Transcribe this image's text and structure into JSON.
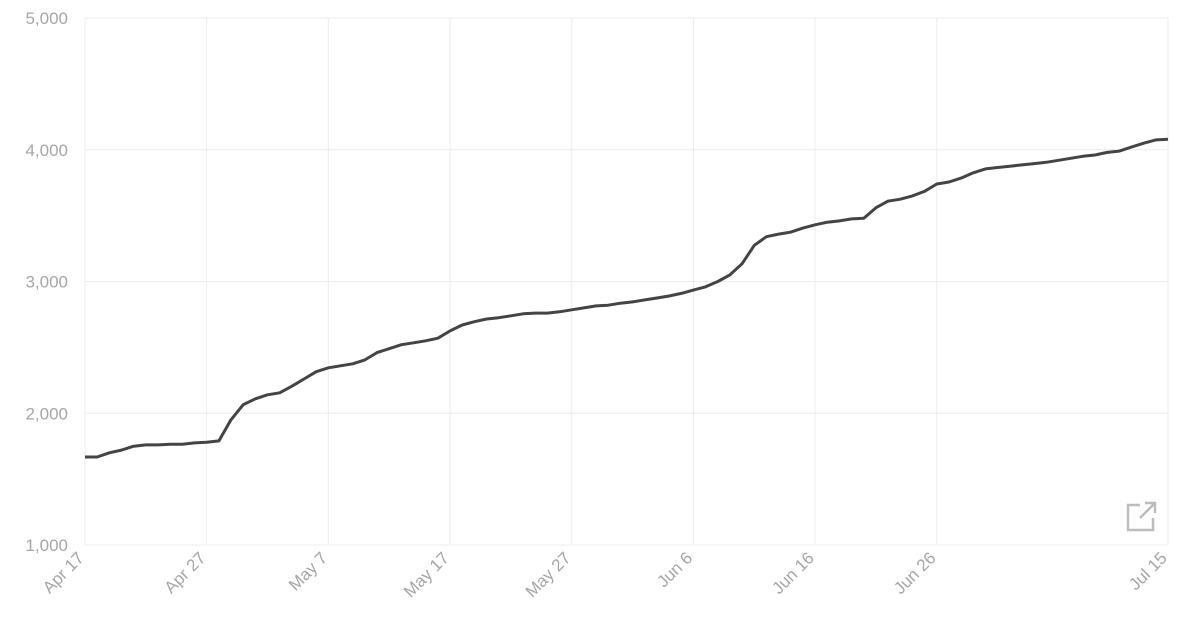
{
  "chart_data": {
    "type": "line",
    "categories": [
      "Apr 17",
      null,
      null,
      null,
      null,
      null,
      null,
      null,
      null,
      null,
      "Apr 27",
      null,
      null,
      null,
      null,
      null,
      null,
      null,
      null,
      null,
      "May 7",
      null,
      null,
      null,
      null,
      null,
      null,
      null,
      null,
      null,
      "May 17",
      null,
      null,
      null,
      null,
      null,
      null,
      null,
      null,
      null,
      "May 27",
      null,
      null,
      null,
      null,
      null,
      null,
      null,
      null,
      null,
      "Jun 6",
      null,
      null,
      null,
      null,
      null,
      null,
      null,
      null,
      null,
      "Jun 16",
      null,
      null,
      null,
      null,
      null,
      null,
      null,
      null,
      null,
      "Jun 26",
      null,
      null,
      null,
      null,
      null,
      null,
      null,
      null,
      null,
      null,
      null,
      null,
      null,
      null,
      null,
      null,
      null,
      null,
      "Jul 15"
    ],
    "series": [
      {
        "color": "#444444",
        "values": [
          1668,
          1668,
          1700,
          1720,
          1750,
          1760,
          1760,
          1765,
          1765,
          1775,
          1780,
          1790,
          1950,
          2065,
          2110,
          2140,
          2155,
          2205,
          2260,
          2315,
          2345,
          2360,
          2375,
          2405,
          2460,
          2490,
          2520,
          2535,
          2550,
          2570,
          2625,
          2670,
          2695,
          2715,
          2725,
          2740,
          2755,
          2760,
          2760,
          2770,
          2785,
          2800,
          2815,
          2820,
          2835,
          2845,
          2860,
          2875,
          2890,
          2910,
          2935,
          2960,
          3000,
          3050,
          3135,
          3275,
          3340,
          3360,
          3375,
          3405,
          3430,
          3450,
          3460,
          3475,
          3480,
          3560,
          3610,
          3625,
          3650,
          3685,
          3740,
          3755,
          3785,
          3825,
          3855,
          3865,
          3875,
          3885,
          3895,
          3905,
          3920,
          3935,
          3950,
          3960,
          3980,
          3990,
          4020,
          4050,
          4075,
          4080
        ]
      }
    ],
    "ylim": [
      1000,
      5000
    ],
    "yticks": [
      {
        "value": 1000,
        "label": "1,000"
      },
      {
        "value": 2000,
        "label": "2,000"
      },
      {
        "value": 3000,
        "label": "3,000"
      },
      {
        "value": 4000,
        "label": "4,000"
      },
      {
        "value": 5000,
        "label": "5,000"
      }
    ],
    "grid": true
  }
}
